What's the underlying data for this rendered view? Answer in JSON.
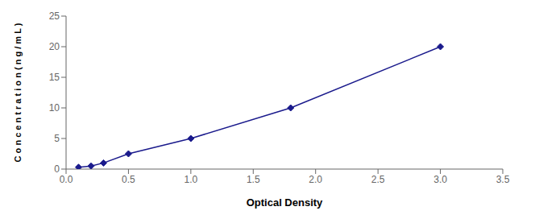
{
  "chart_data": {
    "type": "line",
    "x": [
      0.1,
      0.2,
      0.3,
      0.5,
      1.0,
      1.8,
      3.0
    ],
    "values": [
      0.3,
      0.5,
      1.0,
      2.5,
      5.0,
      10.0,
      20.0
    ],
    "color": "#1A1A8C",
    "marker": "diamond",
    "line_style": "solid",
    "xlabel": "Optical Density",
    "ylabel": "C o n c e n t r a t i o n ( n g / m L )",
    "xlim": [
      0,
      3.5
    ],
    "ylim": [
      0,
      25
    ],
    "xticks": [
      {
        "value": 0,
        "label": "0.0"
      },
      0.5,
      {
        "value": 1.0,
        "label": "1.0"
      },
      1.5,
      {
        "value": 2.0,
        "label": "2.0"
      },
      2.5,
      {
        "value": 3.0,
        "label": "3.0"
      },
      3.5
    ],
    "yticks": [
      0,
      5,
      10,
      15,
      20,
      25
    ],
    "grid": false
  }
}
